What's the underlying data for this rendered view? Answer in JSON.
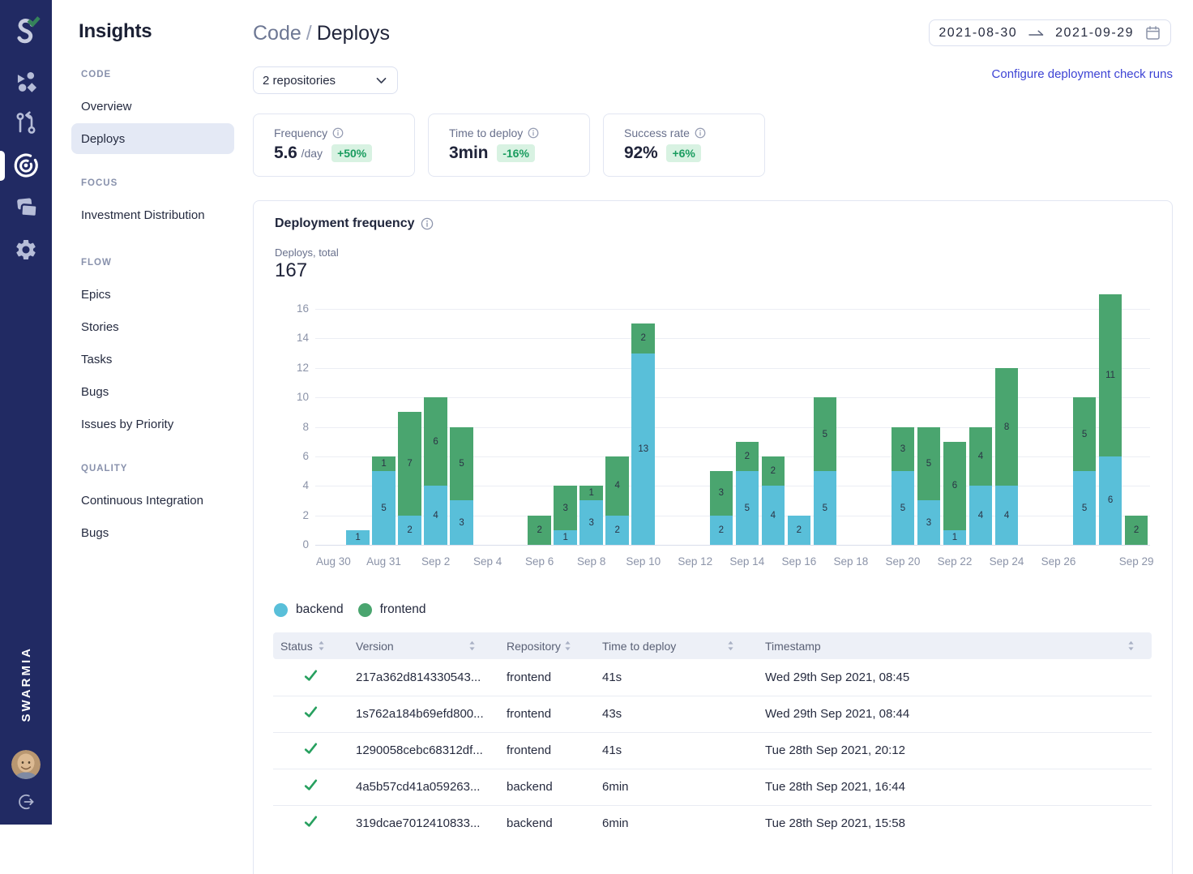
{
  "colors": {
    "rail_bg": "#212a63",
    "accent_link": "#3d43d4",
    "backend": "#59bfd9",
    "frontend": "#4aa56f",
    "badge_bg": "#d8f2e2",
    "badge_text": "#1a9c5f",
    "check_green": "#27a05f",
    "active_pill_bg": "#e4e9f5"
  },
  "rail": {
    "brand": "SWARMIA",
    "icons": [
      "swarmia-logo",
      "shapes-icon",
      "pull-request-icon",
      "target-icon",
      "windows-icon",
      "gear-icon"
    ],
    "active_icon": "target-icon",
    "bottom": [
      "avatar",
      "logout-icon"
    ]
  },
  "sidebar": {
    "title": "Insights",
    "sections": [
      {
        "label": "CODE",
        "items": [
          {
            "label": "Overview",
            "active": false
          },
          {
            "label": "Deploys",
            "active": true
          }
        ]
      },
      {
        "label": "FOCUS",
        "items": [
          {
            "label": "Investment Distribution",
            "active": false
          }
        ]
      },
      {
        "label": "FLOW",
        "items": [
          {
            "label": "Epics",
            "active": false
          },
          {
            "label": "Stories",
            "active": false
          },
          {
            "label": "Tasks",
            "active": false
          },
          {
            "label": "Bugs",
            "active": false
          },
          {
            "label": "Issues by Priority",
            "active": false
          }
        ]
      },
      {
        "label": "QUALITY",
        "items": [
          {
            "label": "Continuous Integration",
            "active": false
          },
          {
            "label": "Bugs",
            "active": false
          }
        ]
      }
    ]
  },
  "header": {
    "breadcrumb": {
      "parent": "Code",
      "separator": "/",
      "current": "Deploys"
    },
    "date_from": "2021-08-30",
    "date_to": "2021-09-29",
    "config_link": "Configure deployment check runs"
  },
  "toolbar": {
    "repo_selector": "2 repositories"
  },
  "metrics": [
    {
      "label": "Frequency",
      "value": "5.6",
      "unit": "/day",
      "badge": "+50%"
    },
    {
      "label": "Time to deploy",
      "value": "3min",
      "unit": "",
      "badge": "-16%"
    },
    {
      "label": "Success rate",
      "value": "92%",
      "unit": "",
      "badge": "+6%"
    }
  ],
  "chart_card": {
    "title": "Deployment frequency",
    "subtitle_label": "Deploys, total",
    "total": "167"
  },
  "chart_data": {
    "type": "bar",
    "stacked": true,
    "title": "Deployment frequency",
    "ylabel": "Deploys, total",
    "total": 167,
    "ylim": [
      0,
      16
    ],
    "yticks": [
      0,
      2,
      4,
      6,
      8,
      10,
      12,
      14,
      16
    ],
    "grid": true,
    "legend_position": "bottom",
    "categories": [
      "Aug 30",
      "Aug 31",
      "Sep 1",
      "Sep 2",
      "Sep 3",
      "Sep 4",
      "Sep 5",
      "Sep 6",
      "Sep 7",
      "Sep 8",
      "Sep 9",
      "Sep 10",
      "Sep 11",
      "Sep 12",
      "Sep 13",
      "Sep 14",
      "Sep 15",
      "Sep 16",
      "Sep 17",
      "Sep 18",
      "Sep 19",
      "Sep 20",
      "Sep 21",
      "Sep 22",
      "Sep 23",
      "Sep 24",
      "Sep 25",
      "Sep 26",
      "Sep 27",
      "Sep 28",
      "Sep 29"
    ],
    "series": [
      {
        "name": "backend",
        "color": "#59bfd9",
        "values": [
          1,
          5,
          2,
          4,
          3,
          0,
          0,
          0,
          1,
          3,
          2,
          13,
          0,
          0,
          2,
          5,
          4,
          2,
          5,
          0,
          0,
          5,
          3,
          1,
          4,
          4,
          0,
          0,
          5,
          6,
          0
        ]
      },
      {
        "name": "frontend",
        "color": "#4aa56f",
        "values": [
          0,
          1,
          7,
          6,
          5,
          0,
          0,
          2,
          3,
          1,
          4,
          2,
          0,
          0,
          3,
          2,
          2,
          0,
          5,
          0,
          0,
          3,
          5,
          6,
          4,
          8,
          0,
          0,
          5,
          11,
          2
        ]
      }
    ],
    "xticks": [
      {
        "label": "Aug 30",
        "day": 0,
        "clamp": "left"
      },
      {
        "label": "Aug 31",
        "day": 1
      },
      {
        "label": "Sep 2",
        "day": 3
      },
      {
        "label": "Sep 4",
        "day": 5
      },
      {
        "label": "Sep 6",
        "day": 7
      },
      {
        "label": "Sep 8",
        "day": 9
      },
      {
        "label": "Sep 10",
        "day": 11
      },
      {
        "label": "Sep 12",
        "day": 13
      },
      {
        "label": "Sep 14",
        "day": 15
      },
      {
        "label": "Sep 16",
        "day": 17
      },
      {
        "label": "Sep 18",
        "day": 19
      },
      {
        "label": "Sep 20",
        "day": 21
      },
      {
        "label": "Sep 22",
        "day": 23
      },
      {
        "label": "Sep 24",
        "day": 25
      },
      {
        "label": "Sep 26",
        "day": 27
      },
      {
        "label": "Sep 29",
        "day": 30
      }
    ]
  },
  "table": {
    "columns": [
      {
        "label": "Status"
      },
      {
        "label": "Version"
      },
      {
        "label": "Repository"
      },
      {
        "label": "Time to deploy"
      },
      {
        "label": "Timestamp"
      }
    ],
    "rows": [
      {
        "status": "success",
        "version": "217a362d814330543...",
        "repository": "frontend",
        "time_to_deploy": "41s",
        "timestamp": "Wed 29th Sep 2021, 08:45"
      },
      {
        "status": "success",
        "version": "1s762a184b69efd800...",
        "repository": "frontend",
        "time_to_deploy": "43s",
        "timestamp": "Wed 29th Sep 2021, 08:44"
      },
      {
        "status": "success",
        "version": "1290058cebc68312df...",
        "repository": "frontend",
        "time_to_deploy": "41s",
        "timestamp": "Tue 28th Sep 2021, 20:12"
      },
      {
        "status": "success",
        "version": "4a5b57cd41a059263...",
        "repository": "backend",
        "time_to_deploy": "6min",
        "timestamp": "Tue 28th Sep 2021, 16:44"
      },
      {
        "status": "success",
        "version": "319dcae7012410833...",
        "repository": "backend",
        "time_to_deploy": "6min",
        "timestamp": "Tue 28th Sep 2021, 15:58"
      }
    ]
  }
}
